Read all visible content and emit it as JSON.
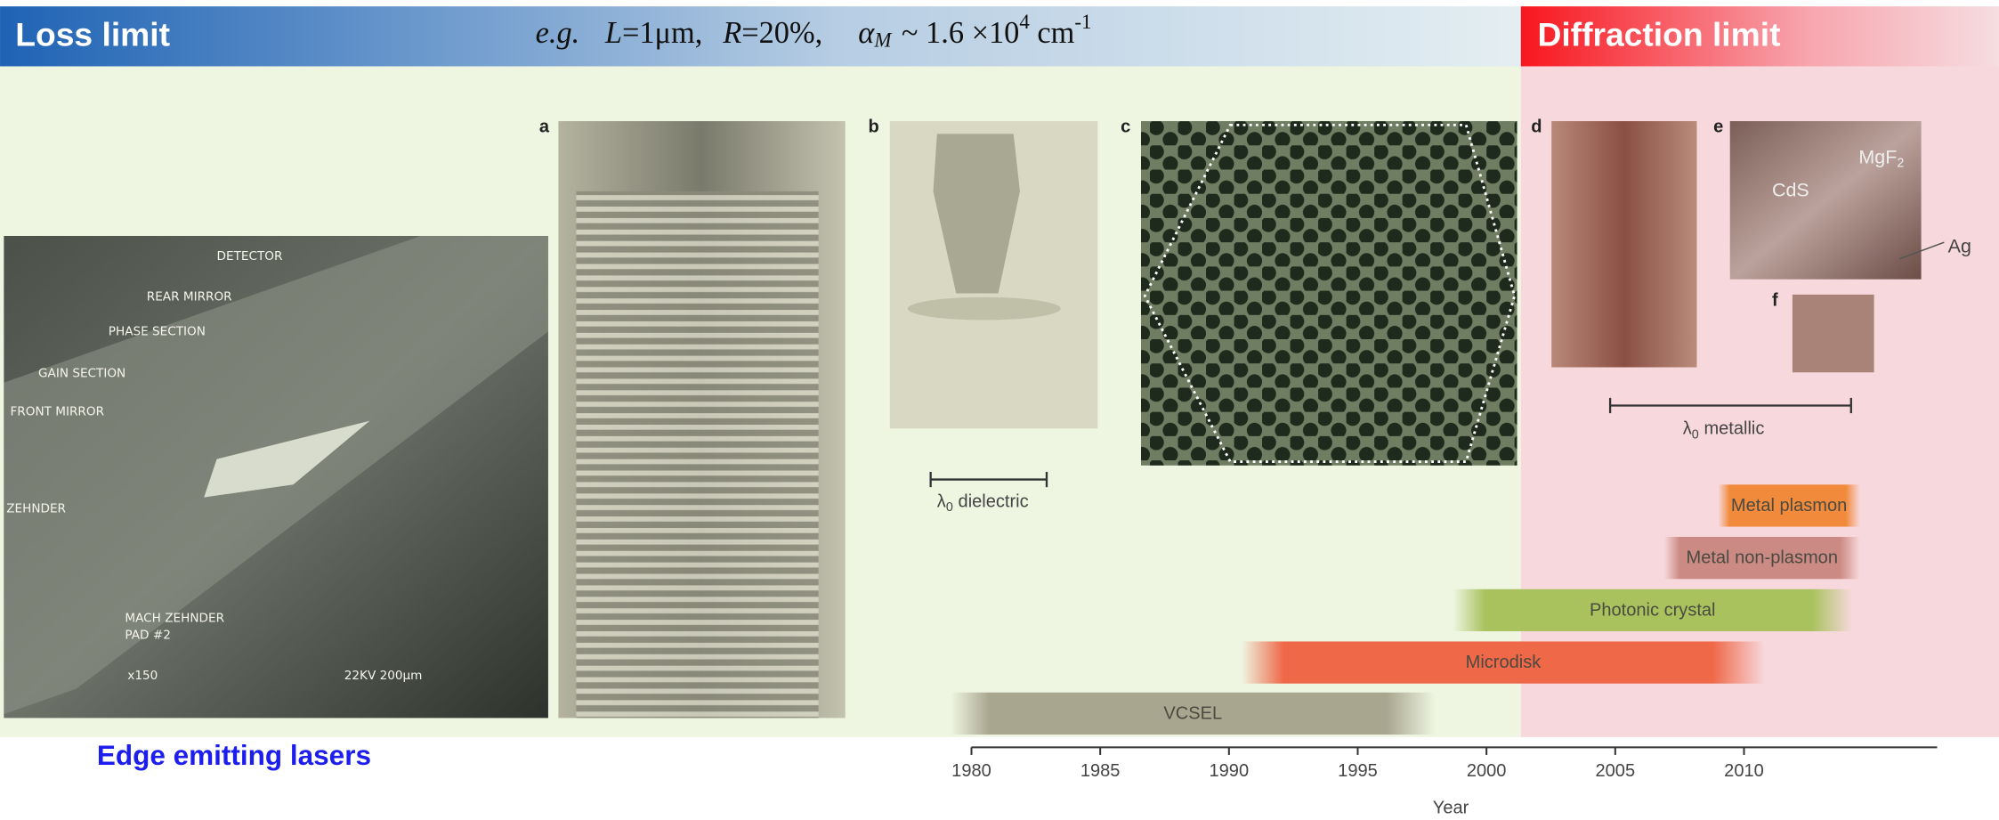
{
  "header": {
    "left_title": "Loss limit",
    "right_title": "Diffraction limit",
    "formula": [
      "e.g.",
      "L",
      "=1μm,",
      "R",
      "=20%,",
      "α",
      "M",
      "~ 1.6 ×10",
      "4",
      "cm",
      "-1"
    ]
  },
  "photos": {
    "edge_caption": "Edge emitting lasers",
    "edge_labels": [
      "DETECTOR",
      "REAR MIRROR",
      "PHASE SECTION",
      "GAIN SECTION",
      "FRONT MIRROR",
      "ZEHNDER",
      "MACH ZEHNDER",
      "PAD #2",
      "x150",
      "22KV 200μm"
    ],
    "panels": [
      "a",
      "b",
      "c",
      "d",
      "e",
      "f"
    ],
    "panel_e_labels": [
      "MgF",
      "2",
      "CdS",
      "Ag"
    ]
  },
  "scale_bars": [
    {
      "symbol": "λ",
      "sub": "0",
      "text": "dielectric"
    },
    {
      "symbol": "λ",
      "sub": "0",
      "text": "metallic"
    }
  ],
  "timeline": {
    "xlim": [
      1980,
      2017.5
    ],
    "ticks": [
      1980,
      1985,
      1990,
      1995,
      2000,
      2005,
      2010
    ],
    "label": "Year",
    "bars": [
      {
        "name": "VCSEL",
        "start": 1979.2,
        "end": 1998,
        "color": "#a9a68f"
      },
      {
        "name": "Microdisk",
        "start": 1990.5,
        "end": 2010.8,
        "color": "#ef6848"
      },
      {
        "name": "Photonic crystal",
        "start": 1998.7,
        "end": 2014.2,
        "color": "#a9c25e"
      },
      {
        "name": "Metal non-plasmon",
        "start": 2006.9,
        "end": 2014.5,
        "color": "#cc8a84"
      },
      {
        "name": "Metal plasmon",
        "start": 2009,
        "end": 2014.5,
        "color": "#f28a3c"
      }
    ]
  }
}
